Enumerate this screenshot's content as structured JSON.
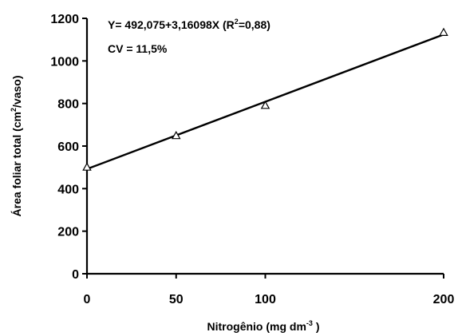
{
  "chart_data": {
    "type": "scatter",
    "title": "",
    "xlabel": {
      "text": "Nitrogênio (mg dm",
      "sup": "-3",
      "suffix": " )"
    },
    "ylabel": {
      "text": "Área foliar total (cm",
      "sup": "2",
      "suffix": "/vaso)"
    },
    "x_ticks": [
      0,
      50,
      100,
      200
    ],
    "y_ticks": [
      0,
      200,
      400,
      600,
      800,
      1000,
      1200
    ],
    "xlim": [
      0,
      200
    ],
    "ylim": [
      0,
      1200
    ],
    "grid": false,
    "series": [
      {
        "marker": "triangle-open",
        "x": [
          0,
          50,
          100,
          200
        ],
        "y": [
          500,
          648,
          790,
          1133
        ]
      }
    ],
    "fit": {
      "intercept": 492.075,
      "slope": 3.16098
    },
    "equation": {
      "prefix": "Y= 492,075+3,16098X  (R",
      "sup": "2",
      "suffix": "=0,88)"
    },
    "cv_text": "CV = 11,5%"
  }
}
